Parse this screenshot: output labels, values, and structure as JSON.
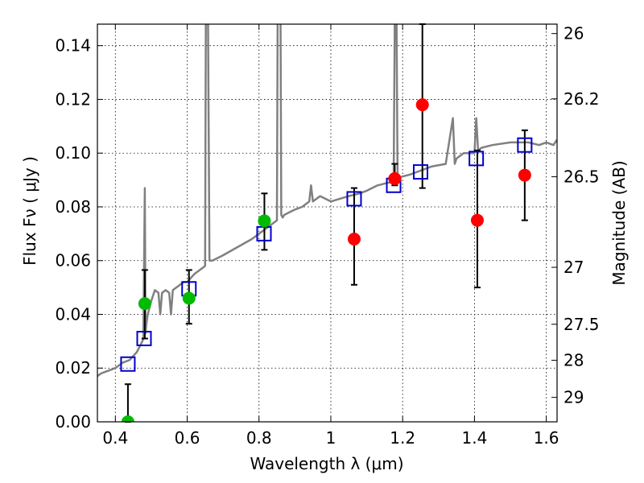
{
  "chart_data": {
    "type": "scatter",
    "xlabel": "Wavelength  λ (μm)",
    "ylabel": "Flux  Fν  ( μJy )",
    "y2label": "Magnitude (AB)",
    "xlim": [
      0.35,
      1.63
    ],
    "ylim": [
      0.0,
      0.148
    ],
    "grid": true,
    "x_ticks": [
      0.4,
      0.6,
      0.8,
      1.0,
      1.2,
      1.4,
      1.6
    ],
    "x_tick_labels": [
      "0.4",
      "0.6",
      "0.8",
      "1",
      "1.2",
      "1.4",
      "1.6"
    ],
    "y_ticks": [
      0.0,
      0.02,
      0.04,
      0.06,
      0.08,
      0.1,
      0.12,
      0.14
    ],
    "y_tick_labels": [
      "0.00",
      "0.02",
      "0.04",
      "0.06",
      "0.08",
      "0.10",
      "0.12",
      "0.14"
    ],
    "y2_ticks": [
      {
        "label": "26",
        "flux": 0.1445
      },
      {
        "label": "26.2",
        "flux": 0.1202
      },
      {
        "label": "26.5",
        "flux": 0.0912
      },
      {
        "label": "27",
        "flux": 0.0575
      },
      {
        "label": "27.5",
        "flux": 0.0363
      },
      {
        "label": "28",
        "flux": 0.0229
      },
      {
        "label": "29",
        "flux": 0.0091
      }
    ],
    "colors": {
      "spectrum": "#808080",
      "observed": "#ff0000",
      "observed_alt": "#00bb00",
      "model": "#0000cc",
      "errorbar": "#000000"
    },
    "series": [
      {
        "name": "Model spectrum",
        "kind": "line",
        "x": [
          0.35,
          0.36,
          0.38,
          0.4,
          0.42,
          0.44,
          0.46,
          0.475,
          0.478,
          0.482,
          0.484,
          0.486,
          0.49,
          0.5,
          0.51,
          0.52,
          0.525,
          0.53,
          0.54,
          0.55,
          0.555,
          0.56,
          0.57,
          0.58,
          0.59,
          0.6,
          0.62,
          0.64,
          0.65,
          0.652,
          0.655,
          0.658,
          0.662,
          0.67,
          0.7,
          0.74,
          0.78,
          0.8,
          0.82,
          0.84,
          0.85,
          0.852,
          0.855,
          0.858,
          0.86,
          0.862,
          0.866,
          0.87,
          0.9,
          0.92,
          0.94,
          0.945,
          0.95,
          0.97,
          1.0,
          1.05,
          1.08,
          1.1,
          1.13,
          1.16,
          1.175,
          1.178,
          1.18,
          1.183,
          1.186,
          1.19,
          1.22,
          1.28,
          1.32,
          1.34,
          1.345,
          1.35,
          1.37,
          1.4,
          1.405,
          1.41,
          1.42,
          1.45,
          1.5,
          1.55,
          1.58,
          1.6,
          1.62,
          1.63
        ],
        "y": [
          0.017,
          0.018,
          0.019,
          0.02,
          0.022,
          0.023,
          0.026,
          0.03,
          0.031,
          0.087,
          0.033,
          0.036,
          0.04,
          0.045,
          0.049,
          0.048,
          0.04,
          0.048,
          0.049,
          0.048,
          0.04,
          0.049,
          0.05,
          0.051,
          0.052,
          0.052,
          0.055,
          0.057,
          0.058,
          0.15,
          0.15,
          0.15,
          0.06,
          0.06,
          0.062,
          0.065,
          0.068,
          0.07,
          0.072,
          0.074,
          0.075,
          0.15,
          0.15,
          0.15,
          0.15,
          0.077,
          0.076,
          0.077,
          0.079,
          0.08,
          0.082,
          0.088,
          0.082,
          0.084,
          0.082,
          0.084,
          0.085,
          0.086,
          0.088,
          0.089,
          0.089,
          0.15,
          0.15,
          0.15,
          0.09,
          0.091,
          0.092,
          0.095,
          0.096,
          0.113,
          0.096,
          0.098,
          0.1,
          0.1,
          0.113,
          0.101,
          0.102,
          0.103,
          0.104,
          0.104,
          0.103,
          0.104,
          0.103,
          0.105
        ]
      },
      {
        "name": "Model photometry",
        "kind": "open-square",
        "x": [
          0.435,
          0.48,
          0.605,
          0.814,
          1.065,
          1.175,
          1.25,
          1.405,
          1.54
        ],
        "y": [
          0.0215,
          0.031,
          0.0495,
          0.07,
          0.083,
          0.088,
          0.093,
          0.098,
          0.103
        ]
      },
      {
        "name": "Observed (red)",
        "kind": "point-errorbar",
        "x": [
          1.065,
          1.178,
          1.255,
          1.408,
          1.54
        ],
        "y": [
          0.068,
          0.0905,
          0.118,
          0.075,
          0.0918
        ],
        "yerr_low": [
          0.051,
          0.088,
          0.087,
          0.05,
          0.075
        ],
        "yerr_high": [
          0.087,
          0.096,
          0.149,
          0.101,
          0.1085
        ]
      },
      {
        "name": "Observed (green)",
        "kind": "point-errorbar",
        "x": [
          0.435,
          0.482,
          0.605,
          0.815
        ],
        "y": [
          0.0,
          0.044,
          0.046,
          0.0748
        ],
        "yerr_low": [
          0.0,
          0.031,
          0.0365,
          0.064
        ],
        "yerr_high": [
          0.014,
          0.0565,
          0.0565,
          0.085
        ]
      }
    ]
  }
}
